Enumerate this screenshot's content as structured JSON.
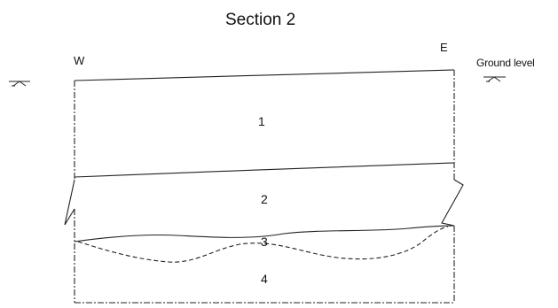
{
  "title": "Section 2",
  "orientation": {
    "west": "W",
    "east": "E"
  },
  "legend": {
    "ground_level": "Ground level"
  },
  "layers": [
    {
      "label": "1"
    },
    {
      "label": "2"
    },
    {
      "label": "3"
    },
    {
      "label": "4"
    }
  ],
  "icons": {
    "water_table_symbol": "water-table-icon"
  },
  "colors": {
    "ink": "#222222",
    "background": "#ffffff"
  }
}
